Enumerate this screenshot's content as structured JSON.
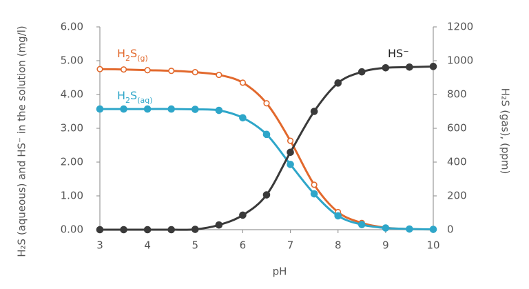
{
  "chart_data": {
    "type": "line",
    "x_label": "pH",
    "y_label": "H₂S (aqueous) and HS⁻ in the solution (mg/l)",
    "y2_label": "H₂S (gas), (ppm)",
    "x": [
      3,
      3.5,
      4,
      4.5,
      5,
      5.5,
      6,
      6.5,
      7,
      7.5,
      8,
      8.5,
      9,
      9.5,
      10
    ],
    "xlim": [
      3,
      10
    ],
    "xticks": [
      3,
      4,
      5,
      6,
      7,
      8,
      9,
      10
    ],
    "ylim": [
      0,
      6
    ],
    "yticks": [
      {
        "value": 0,
        "label": "0.00"
      },
      {
        "value": 1,
        "label": "1.00"
      },
      {
        "value": 2,
        "label": "2.00"
      },
      {
        "value": 3,
        "label": "3.00"
      },
      {
        "value": 4,
        "label": "4.00"
      },
      {
        "value": 5,
        "label": "5.00"
      },
      {
        "value": 6,
        "label": "6.00"
      }
    ],
    "y2lim": [
      0,
      1200
    ],
    "y2ticks": [
      0,
      200,
      400,
      600,
      800,
      1000,
      1200
    ],
    "grid": false,
    "series": [
      {
        "name": "H2S(g)",
        "color": "#e2692d",
        "marker": "open",
        "axis": "y2",
        "values": [
          950,
          948,
          944,
          940,
          932,
          916,
          870,
          748,
          526,
          266,
          104,
          40,
          12,
          4,
          1
        ]
      },
      {
        "name": "H2S(aq)",
        "color": "#2ea6c9",
        "marker": "filled",
        "axis": "y",
        "values": [
          3.57,
          3.57,
          3.57,
          3.57,
          3.56,
          3.53,
          3.31,
          2.82,
          1.93,
          1.06,
          0.41,
          0.15,
          0.05,
          0.02,
          0.01
        ]
      },
      {
        "name": "HS⁻",
        "color": "#3a3a3a",
        "marker": "filled",
        "axis": "y",
        "values": [
          0,
          0,
          0,
          0,
          0.01,
          0.14,
          0.43,
          1.03,
          2.29,
          3.5,
          4.34,
          4.67,
          4.79,
          4.81,
          4.83
        ]
      }
    ]
  }
}
